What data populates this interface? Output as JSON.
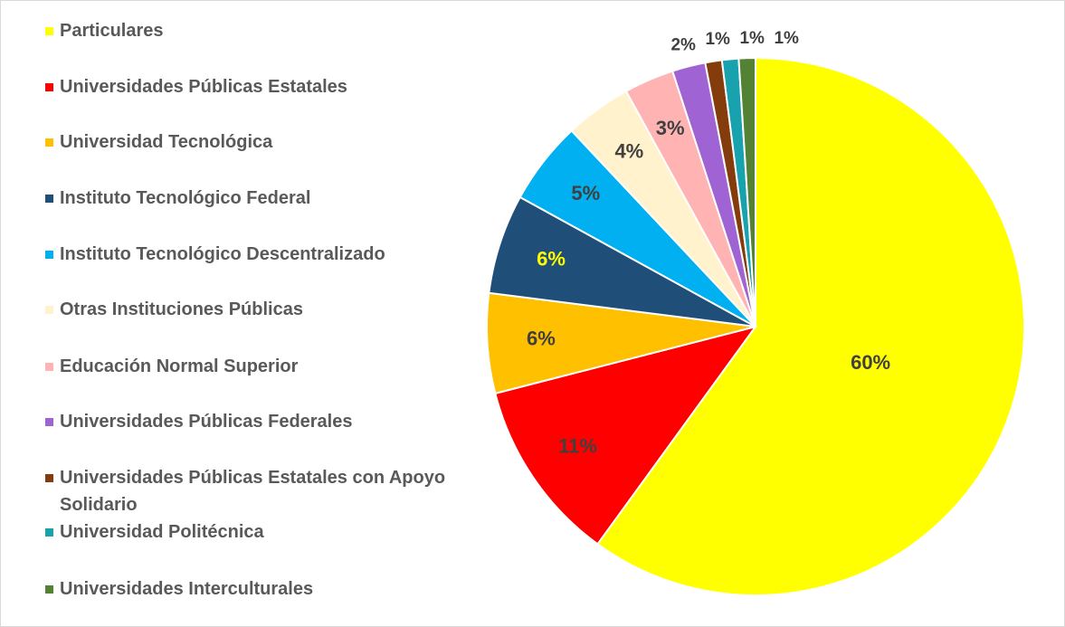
{
  "chart_data": {
    "type": "pie",
    "categories": [
      "Particulares",
      "Universidades Públicas Estatales",
      "Universidad Tecnológica",
      "Instituto Tecnológico Federal",
      "Instituto Tecnológico Descentralizado",
      "Otras Instituciones Públicas",
      "Educación Normal Superior",
      "Universidades Públicas Federales",
      "Universidades Públicas Estatales con Apoyo Solidario",
      "Universidad Politécnica",
      "Universidades Interculturales"
    ],
    "values": [
      60,
      11,
      6,
      6,
      5,
      4,
      3,
      2,
      1,
      1,
      1
    ],
    "value_labels": [
      "60%",
      "11%",
      "6%",
      "6%",
      "5%",
      "4%",
      "3%",
      "2%",
      "1%",
      "1%",
      "1%"
    ],
    "colors": [
      "#ffff00",
      "#ff0000",
      "#ffc000",
      "#1f4e79",
      "#00b0f0",
      "#fff2cc",
      "#ffb3b3",
      "#9f63d3",
      "#843c0c",
      "#17a2ad",
      "#548235"
    ],
    "label_colors": [
      "#404040",
      "#404040",
      "#404040",
      "#ffff00",
      "#404040",
      "#404040",
      "#404040",
      "#404040",
      "#404040",
      "#404040",
      "#404040"
    ],
    "legend": "left"
  }
}
